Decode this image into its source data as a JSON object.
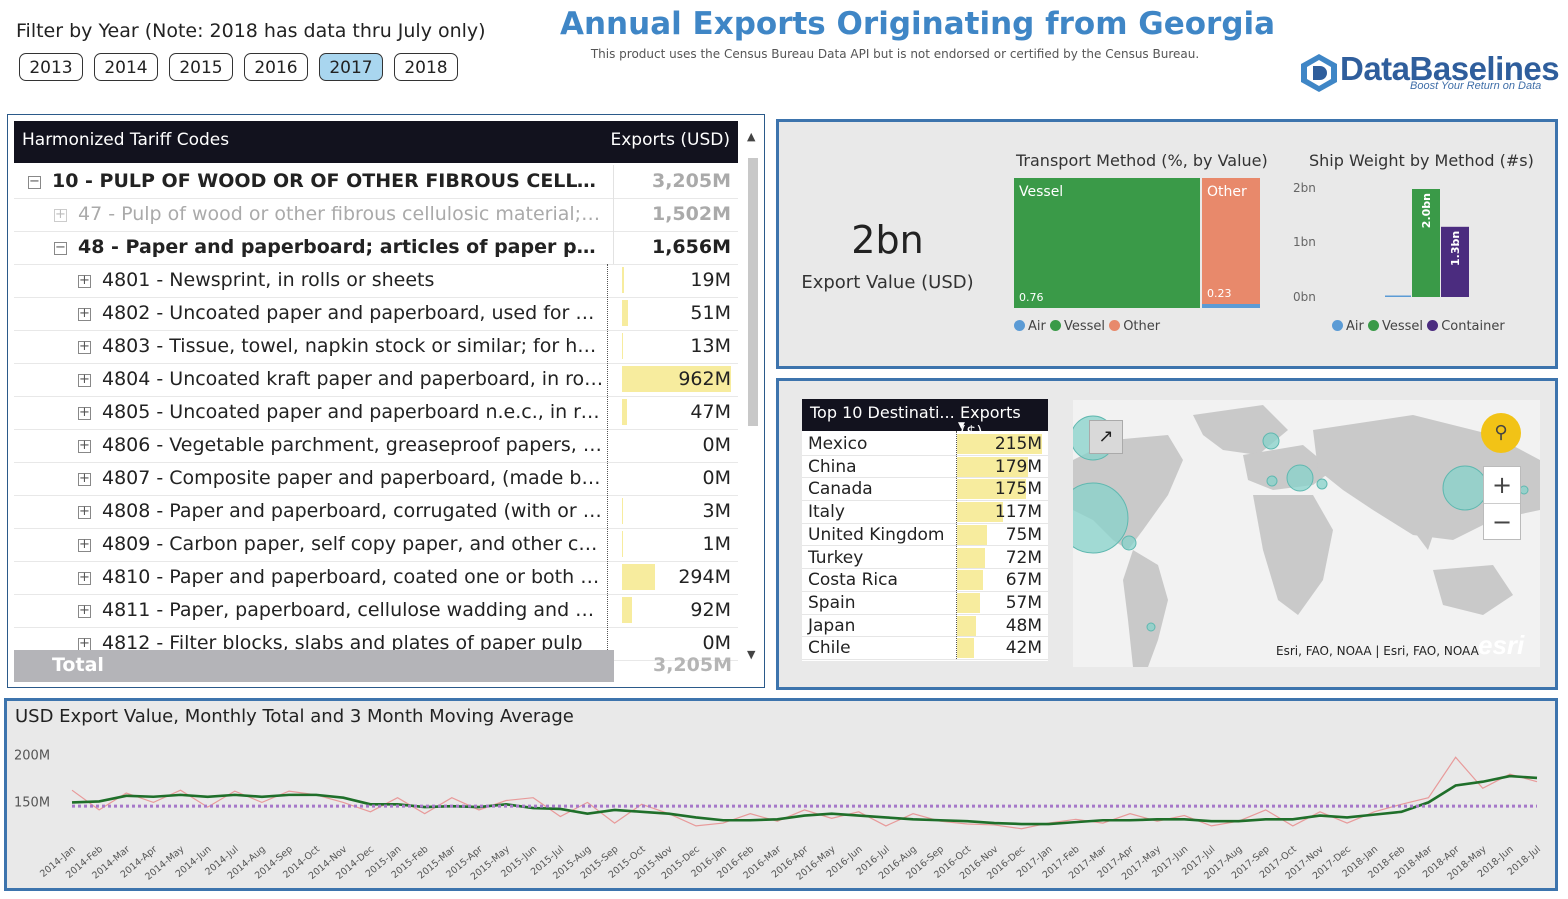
{
  "header": {
    "filter_label": "Filter by Year (Note: 2018 has data thru July only)",
    "years": [
      "2013",
      "2014",
      "2015",
      "2016",
      "2017",
      "2018"
    ],
    "selected_year": "2017",
    "title": "Annual Exports Originating from Georgia",
    "disclaimer": "This product uses the Census Bureau Data API but is not endorsed or certified by the Census Bureau.",
    "logo_text": "DataBaselines",
    "logo_tagline": "Boost Your Return on Data",
    "brand_color": "#3f86c6"
  },
  "matrix": {
    "col_codes": "Harmonized Tariff Codes",
    "col_exports": "Exports (USD)",
    "rows": [
      {
        "label": "10 - PULP OF WOOD OR OF OTHER FIBROUS CELLULOSIC...",
        "value": "3,205M",
        "level": 0,
        "expander": "−"
      },
      {
        "label": "47 - Pulp of wood or other fibrous cellulosic material; ...",
        "value": "1,502M",
        "level": 1,
        "expander": "+"
      },
      {
        "label": "48 - Paper and paperboard; articles of paper pulp, of ...",
        "value": "1,656M",
        "level": 1,
        "expander": "−"
      },
      {
        "label": "4801 - Newsprint, in rolls or sheets",
        "value": "19M",
        "level": 2,
        "expander": "+",
        "amount": 19
      },
      {
        "label": "4802 - Uncoated paper and paperboard, used for writi...",
        "value": "51M",
        "level": 2,
        "expander": "+",
        "amount": 51
      },
      {
        "label": "4803 - Tissue, towel, napkin stock or similar; for house...",
        "value": "13M",
        "level": 2,
        "expander": "+",
        "amount": 13
      },
      {
        "label": "4804 - Uncoated kraft paper and paperboard, in rolls o...",
        "value": "962M",
        "level": 2,
        "expander": "+",
        "amount": 962
      },
      {
        "label": "4805 - Uncoated paper and paperboard n.e.c., in rolls ...",
        "value": "47M",
        "level": 2,
        "expander": "+",
        "amount": 47
      },
      {
        "label": "4806 - Vegetable parchment, greaseproof papers, traci...",
        "value": "0M",
        "level": 2,
        "expander": "+",
        "amount": 0
      },
      {
        "label": "4807 - Composite paper and paperboard, (made by sti...",
        "value": "0M",
        "level": 2,
        "expander": "+",
        "amount": 0
      },
      {
        "label": "4808 - Paper and paperboard, corrugated (with or with...",
        "value": "3M",
        "level": 2,
        "expander": "+",
        "amount": 3
      },
      {
        "label": "4809 - Carbon paper, self copy paper, and other copyi...",
        "value": "1M",
        "level": 2,
        "expander": "+",
        "amount": 1
      },
      {
        "label": "4810 - Paper and paperboard, coated one or both side...",
        "value": "294M",
        "level": 2,
        "expander": "+",
        "amount": 294
      },
      {
        "label": "4811 - Paper, paperboard, cellulose wadding and webs...",
        "value": "92M",
        "level": 2,
        "expander": "+",
        "amount": 92
      },
      {
        "label": "4812 - Filter blocks, slabs and plates of paper pulp",
        "value": "0M",
        "level": 2,
        "expander": "+",
        "amount": 0
      }
    ],
    "total_label": "Total",
    "total_value": "3,205M"
  },
  "kpi": {
    "value": "2bn",
    "label": "Export Value (USD)"
  },
  "transport": {
    "title": "Transport Method (%, by Value)",
    "vessel_label": "Vessel",
    "vessel_value": "0.76",
    "other_label": "Other",
    "other_value": "0.23",
    "legend": [
      {
        "name": "Air",
        "color": "#5b9bd5"
      },
      {
        "name": "Vessel",
        "color": "#3a9a48"
      },
      {
        "name": "Other",
        "color": "#e8896b"
      }
    ]
  },
  "ship_weight": {
    "title": "Ship Weight by Method (#s)",
    "y_ticks": [
      "2bn",
      "1bn",
      "0bn"
    ],
    "bars": [
      {
        "name": "Air",
        "value": 0.01,
        "label": "",
        "color": "#5b9bd5"
      },
      {
        "name": "Vessel",
        "value": 2.0,
        "label": "2.0bn",
        "color": "#3a9a48"
      },
      {
        "name": "Container",
        "value": 1.3,
        "label": "1.3bn",
        "color": "#4b2c7f"
      }
    ],
    "legend": [
      {
        "name": "Air",
        "color": "#5b9bd5"
      },
      {
        "name": "Vessel",
        "color": "#3a9a48"
      },
      {
        "name": "Container",
        "color": "#4b2c7f"
      }
    ]
  },
  "destinations": {
    "col_name": "Top 10 Destinati...",
    "col_value": "Exports ($)",
    "rows": [
      {
        "name": "Mexico",
        "value": "215M",
        "amount": 215
      },
      {
        "name": "China",
        "value": "179M",
        "amount": 179
      },
      {
        "name": "Canada",
        "value": "175M",
        "amount": 175
      },
      {
        "name": "Italy",
        "value": "117M",
        "amount": 117
      },
      {
        "name": "United Kingdom",
        "value": "75M",
        "amount": 75
      },
      {
        "name": "Turkey",
        "value": "72M",
        "amount": 72
      },
      {
        "name": "Costa Rica",
        "value": "67M",
        "amount": 67
      },
      {
        "name": "Spain",
        "value": "57M",
        "amount": 57
      },
      {
        "name": "Japan",
        "value": "48M",
        "amount": 48
      },
      {
        "name": "Chile",
        "value": "42M",
        "amount": 42
      }
    ]
  },
  "map": {
    "attribution": "Esri, FAO, NOAA | Esri, FAO, NOAA",
    "powered_by": "esri",
    "zoom_in": "+",
    "zoom_out": "−"
  },
  "chart_data": {
    "type": "line",
    "title": "USD Export Value, Monthly Total and 3 Month Moving Average",
    "y_ticks": [
      "200M",
      "150M"
    ],
    "ylim": [
      110,
      210
    ],
    "reference_value": 146,
    "x": [
      "2014-Jan",
      "2014-Feb",
      "2014-Mar",
      "2014-Apr",
      "2014-May",
      "2014-Jun",
      "2014-Jul",
      "2014-Aug",
      "2014-Sep",
      "2014-Oct",
      "2014-Nov",
      "2014-Dec",
      "2015-Jan",
      "2015-Feb",
      "2015-Mar",
      "2015-Apr",
      "2015-May",
      "2015-Jun",
      "2015-Jul",
      "2015-Aug",
      "2015-Sep",
      "2015-Oct",
      "2015-Nov",
      "2015-Dec",
      "2016-Jan",
      "2016-Feb",
      "2016-Mar",
      "2016-Apr",
      "2016-May",
      "2016-Jun",
      "2016-Jul",
      "2016-Aug",
      "2016-Sep",
      "2016-Oct",
      "2016-Nov",
      "2016-Dec",
      "2017-Jan",
      "2017-Feb",
      "2017-Mar",
      "2017-Apr",
      "2017-May",
      "2017-Jun",
      "2017-Jul",
      "2017-Aug",
      "2017-Sep",
      "2017-Oct",
      "2017-Nov",
      "2017-Dec",
      "2018-Jan",
      "2018-Feb",
      "2018-Mar",
      "2018-Apr",
      "2018-May",
      "2018-Jun",
      "2018-Jul"
    ],
    "series": [
      {
        "name": "",
        "color": "#e89a9a",
        "values": [
          163,
          142,
          160,
          150,
          163,
          145,
          162,
          150,
          162,
          158,
          150,
          140,
          155,
          138,
          155,
          142,
          152,
          155,
          135,
          150,
          128,
          148,
          138,
          125,
          128,
          138,
          130,
          142,
          133,
          140,
          125,
          138,
          130,
          127,
          126,
          122,
          128,
          132,
          128,
          138,
          130,
          136,
          125,
          130,
          142,
          125,
          140,
          128,
          140,
          148,
          155,
          198,
          165,
          180,
          172
        ]
      },
      {
        "name": "",
        "color": "#1f6f2a",
        "values": [
          150,
          151,
          157,
          156,
          158,
          156,
          158,
          156,
          158,
          158,
          155,
          148,
          148,
          145,
          146,
          145,
          148,
          144,
          143,
          138,
          142,
          140,
          138,
          134,
          131,
          131,
          132,
          136,
          138,
          136,
          134,
          132,
          131,
          130,
          128,
          127,
          127,
          129,
          131,
          131,
          132,
          132,
          130,
          130,
          132,
          132,
          136,
          134,
          137,
          140,
          150,
          168,
          172,
          178,
          176
        ]
      },
      {
        "name": "",
        "color": "#a678c9",
        "values": [
          146,
          146,
          146,
          146,
          146,
          146,
          146,
          146,
          146,
          146,
          146,
          146,
          146,
          146,
          146,
          146,
          146,
          146,
          146,
          146,
          146,
          146,
          146,
          146,
          146,
          146,
          146,
          146,
          146,
          146,
          146,
          146,
          146,
          146,
          146,
          146,
          146,
          146,
          146,
          146,
          146,
          146,
          146,
          146,
          146,
          146,
          146,
          146,
          146,
          146,
          146,
          146,
          146,
          146,
          146
        ]
      }
    ]
  }
}
